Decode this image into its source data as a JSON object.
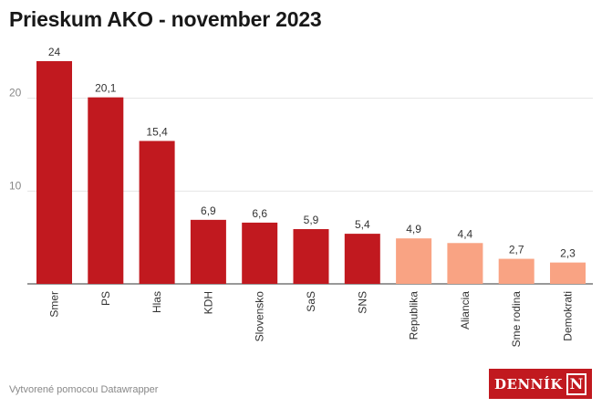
{
  "header": {
    "title": "Prieskum AKO - november 2023"
  },
  "footer": {
    "credit": "Vytvorené pomocou Datawrapper"
  },
  "logo": {
    "text": "DENNÍK",
    "letter": "N"
  },
  "colors": {
    "primary": "#c1191f",
    "secondary": "#f9a383",
    "grid": "#e4e4e4",
    "axis": "#333333"
  },
  "chart_data": {
    "type": "bar",
    "title": "Prieskum AKO - november 2023",
    "categories": [
      "Smer",
      "PS",
      "Hlas",
      "KDH",
      "Slovensko",
      "SaS",
      "SNS",
      "Republika",
      "Aliancia",
      "Sme rodina",
      "Demokrati"
    ],
    "values": [
      24,
      20.1,
      15.4,
      6.9,
      6.6,
      5.9,
      5.4,
      4.9,
      4.4,
      2.7,
      2.3
    ],
    "value_labels": [
      "24",
      "20,1",
      "15,4",
      "6,9",
      "6,6",
      "5,9",
      "5,4",
      "4,9",
      "4,4",
      "2,7",
      "2,3"
    ],
    "highlight": [
      true,
      true,
      true,
      true,
      true,
      true,
      true,
      false,
      false,
      false,
      false
    ],
    "y_ticks": [
      10,
      20
    ],
    "ylim": [
      0,
      25
    ],
    "grid": true,
    "xlabel": "",
    "ylabel": ""
  }
}
